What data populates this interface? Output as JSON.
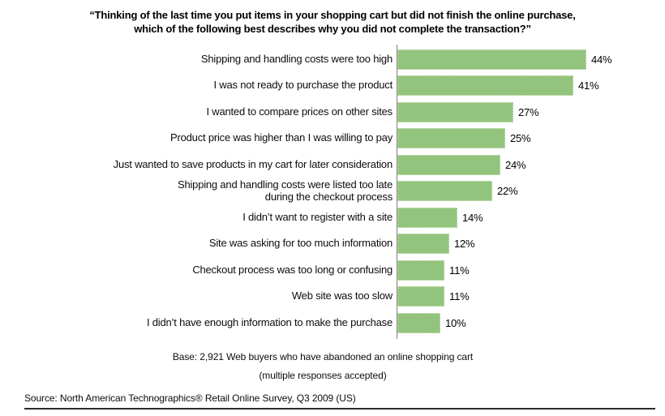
{
  "title": "“Thinking of the last time you put items in your shopping cart but did not finish the online purchase,\nwhich of the following best describes why you did not complete the transaction?”",
  "chart_data": {
    "type": "bar",
    "orientation": "horizontal",
    "categories": [
      "Shipping and handling costs were too high",
      "I was not ready to purchase the product",
      "I wanted to compare prices on other sites",
      "Product price was higher than I was willing to pay",
      "Just wanted to save products in my cart for later consideration",
      "Shipping and handling costs were listed too late\nduring the checkout process",
      "I didn’t want to register with a site",
      "Site was asking for too much information",
      "Checkout process was too long or confusing",
      "Web site was too slow",
      "I didn’t have enough information to make the purchase"
    ],
    "values": [
      44,
      41,
      27,
      25,
      24,
      22,
      14,
      12,
      11,
      11,
      10
    ],
    "value_suffix": "%",
    "xlim": [
      0,
      50
    ],
    "bar_color": "#93c47d",
    "axis_color": "#7f7f7f",
    "grid": false,
    "legend": "none",
    "data_labels": "outside-end"
  },
  "notes": {
    "base": "Base: 2,921 Web buyers who have abandoned an online shopping cart",
    "note": "(multiple responses accepted)"
  },
  "source": "Source: North American Technographics® Retail Online Survey, Q3 2009 (US)"
}
